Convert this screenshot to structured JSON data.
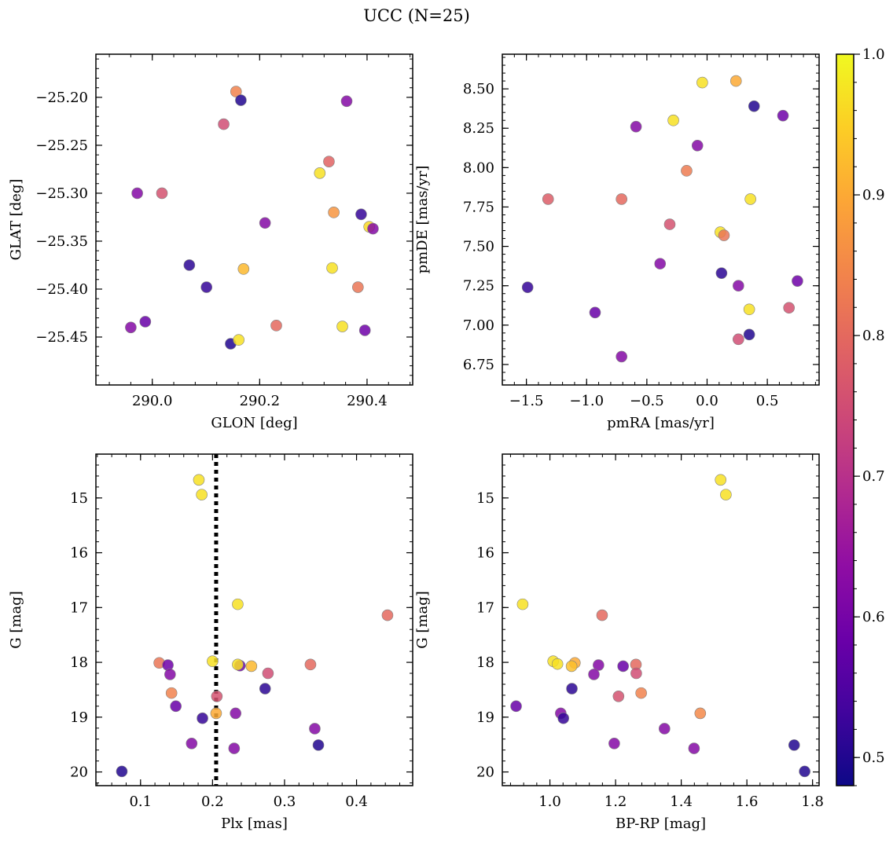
{
  "title": "UCC (N=25)",
  "colorbar": {
    "ticks": [
      0.5,
      0.6,
      0.7,
      0.8,
      0.9,
      1.0
    ],
    "tick_labels": [
      "0.5",
      "0.6",
      "0.7",
      "0.8",
      "0.9",
      "1.0"
    ],
    "range": [
      0.48,
      1.0
    ],
    "colormap": "plasma"
  },
  "chart_data": [
    {
      "type": "scatter",
      "xlabel": "GLON [deg]",
      "ylabel": "GLAT [deg]",
      "xlim": [
        289.895,
        290.485
      ],
      "ylim": [
        -25.5,
        -25.155
      ],
      "x_ticks": [
        290.0,
        290.2,
        290.4
      ],
      "x_tick_labels": [
        "290.0",
        "290.2",
        "290.4"
      ],
      "y_ticks": [
        -25.2,
        -25.25,
        -25.3,
        -25.35,
        -25.4,
        -25.45
      ],
      "y_tick_labels": [
        "−25.20",
        "−25.25",
        "−25.30",
        "−25.35",
        "−25.40",
        "−25.45"
      ],
      "points": [
        {
          "x": 290.156,
          "y": -25.194,
          "c": 0.84
        },
        {
          "x": 290.165,
          "y": -25.203,
          "c": 0.5
        },
        {
          "x": 290.362,
          "y": -25.204,
          "c": 0.62
        },
        {
          "x": 290.133,
          "y": -25.228,
          "c": 0.75
        },
        {
          "x": 290.329,
          "y": -25.267,
          "c": 0.79
        },
        {
          "x": 290.312,
          "y": -25.279,
          "c": 0.97
        },
        {
          "x": 289.972,
          "y": -25.3,
          "c": 0.62
        },
        {
          "x": 290.018,
          "y": -25.3,
          "c": 0.76
        },
        {
          "x": 290.338,
          "y": -25.32,
          "c": 0.87
        },
        {
          "x": 290.389,
          "y": -25.322,
          "c": 0.52
        },
        {
          "x": 290.21,
          "y": -25.331,
          "c": 0.62
        },
        {
          "x": 290.404,
          "y": -25.335,
          "c": 0.96
        },
        {
          "x": 290.411,
          "y": -25.337,
          "c": 0.62
        },
        {
          "x": 290.069,
          "y": -25.375,
          "c": 0.51
        },
        {
          "x": 290.17,
          "y": -25.379,
          "c": 0.92
        },
        {
          "x": 290.335,
          "y": -25.378,
          "c": 0.97
        },
        {
          "x": 290.101,
          "y": -25.398,
          "c": 0.52
        },
        {
          "x": 290.383,
          "y": -25.398,
          "c": 0.82
        },
        {
          "x": 289.96,
          "y": -25.44,
          "c": 0.62
        },
        {
          "x": 289.987,
          "y": -25.434,
          "c": 0.58
        },
        {
          "x": 290.231,
          "y": -25.438,
          "c": 0.8
        },
        {
          "x": 290.354,
          "y": -25.439,
          "c": 0.97
        },
        {
          "x": 290.396,
          "y": -25.443,
          "c": 0.59
        },
        {
          "x": 290.146,
          "y": -25.457,
          "c": 0.5
        },
        {
          "x": 290.161,
          "y": -25.453,
          "c": 0.97
        }
      ]
    },
    {
      "type": "scatter",
      "xlabel": "pmRA [mas/yr]",
      "ylabel": "pmDE [mas/yr]",
      "xlim": [
        -1.7,
        0.93
      ],
      "ylim": [
        6.62,
        8.72
      ],
      "x_ticks": [
        -1.5,
        -1.0,
        -0.5,
        0.0,
        0.5
      ],
      "x_tick_labels": [
        "−1.5",
        "−1.0",
        "−0.5",
        "0.0",
        "0.5"
      ],
      "y_ticks": [
        6.75,
        7.0,
        7.25,
        7.5,
        7.75,
        8.0,
        8.25,
        8.5
      ],
      "y_tick_labels": [
        "6.75",
        "7.00",
        "7.25",
        "7.50",
        "7.75",
        "8.00",
        "8.25",
        "8.50"
      ],
      "points": [
        {
          "x": 0.24,
          "y": 8.55,
          "c": 0.9
        },
        {
          "x": -0.04,
          "y": 8.54,
          "c": 0.97
        },
        {
          "x": 0.39,
          "y": 8.39,
          "c": 0.5
        },
        {
          "x": 0.63,
          "y": 8.33,
          "c": 0.59
        },
        {
          "x": -0.28,
          "y": 8.3,
          "c": 0.97
        },
        {
          "x": -0.59,
          "y": 8.26,
          "c": 0.62
        },
        {
          "x": -0.08,
          "y": 8.14,
          "c": 0.62
        },
        {
          "x": -0.17,
          "y": 7.98,
          "c": 0.83
        },
        {
          "x": -1.32,
          "y": 7.8,
          "c": 0.78
        },
        {
          "x": -0.71,
          "y": 7.8,
          "c": 0.8
        },
        {
          "x": 0.36,
          "y": 7.8,
          "c": 0.97
        },
        {
          "x": -0.31,
          "y": 7.64,
          "c": 0.76
        },
        {
          "x": 0.11,
          "y": 7.59,
          "c": 0.97
        },
        {
          "x": 0.14,
          "y": 7.57,
          "c": 0.82
        },
        {
          "x": -0.39,
          "y": 7.39,
          "c": 0.62
        },
        {
          "x": 0.12,
          "y": 7.33,
          "c": 0.51
        },
        {
          "x": -1.49,
          "y": 7.24,
          "c": 0.52
        },
        {
          "x": 0.26,
          "y": 7.25,
          "c": 0.62
        },
        {
          "x": 0.75,
          "y": 7.28,
          "c": 0.59
        },
        {
          "x": 0.68,
          "y": 7.11,
          "c": 0.76
        },
        {
          "x": 0.35,
          "y": 7.1,
          "c": 0.97
        },
        {
          "x": -0.93,
          "y": 7.08,
          "c": 0.58
        },
        {
          "x": 0.26,
          "y": 6.91,
          "c": 0.75
        },
        {
          "x": 0.35,
          "y": 6.94,
          "c": 0.5
        },
        {
          "x": -0.71,
          "y": 6.8,
          "c": 0.62
        }
      ]
    },
    {
      "type": "scatter",
      "xlabel": "Plx [mas]",
      "ylabel": "G [mag]",
      "xlim": [
        0.038,
        0.478
      ],
      "ylim": [
        20.25,
        14.2
      ],
      "y_inverted": true,
      "vline": {
        "x": 0.205,
        "style": "dotted"
      },
      "x_ticks": [
        0.1,
        0.2,
        0.3,
        0.4
      ],
      "x_tick_labels": [
        "0.1",
        "0.2",
        "0.3",
        "0.4"
      ],
      "y_ticks": [
        15,
        16,
        17,
        18,
        19,
        20
      ],
      "y_tick_labels": [
        "15",
        "16",
        "17",
        "18",
        "19",
        "20"
      ],
      "points": [
        {
          "x": 0.181,
          "y": 14.67,
          "c": 0.97
        },
        {
          "x": 0.185,
          "y": 14.94,
          "c": 0.97
        },
        {
          "x": 0.235,
          "y": 16.94,
          "c": 0.97
        },
        {
          "x": 0.443,
          "y": 17.14,
          "c": 0.8
        },
        {
          "x": 0.126,
          "y": 18.01,
          "c": 0.82
        },
        {
          "x": 0.138,
          "y": 18.05,
          "c": 0.59
        },
        {
          "x": 0.2,
          "y": 17.98,
          "c": 0.97
        },
        {
          "x": 0.238,
          "y": 18.06,
          "c": 0.59
        },
        {
          "x": 0.235,
          "y": 18.04,
          "c": 0.97
        },
        {
          "x": 0.254,
          "y": 18.07,
          "c": 0.92
        },
        {
          "x": 0.336,
          "y": 18.04,
          "c": 0.8
        },
        {
          "x": 0.141,
          "y": 18.22,
          "c": 0.62
        },
        {
          "x": 0.277,
          "y": 18.2,
          "c": 0.75
        },
        {
          "x": 0.143,
          "y": 18.56,
          "c": 0.84
        },
        {
          "x": 0.273,
          "y": 18.48,
          "c": 0.51
        },
        {
          "x": 0.206,
          "y": 18.62,
          "c": 0.76
        },
        {
          "x": 0.149,
          "y": 18.8,
          "c": 0.58
        },
        {
          "x": 0.186,
          "y": 19.02,
          "c": 0.52
        },
        {
          "x": 0.205,
          "y": 18.93,
          "c": 0.9
        },
        {
          "x": 0.232,
          "y": 18.93,
          "c": 0.62
        },
        {
          "x": 0.342,
          "y": 19.21,
          "c": 0.62
        },
        {
          "x": 0.171,
          "y": 19.48,
          "c": 0.62
        },
        {
          "x": 0.23,
          "y": 19.57,
          "c": 0.62
        },
        {
          "x": 0.347,
          "y": 19.51,
          "c": 0.5
        },
        {
          "x": 0.074,
          "y": 19.99,
          "c": 0.5
        }
      ]
    },
    {
      "type": "scatter",
      "xlabel": "BP-RP [mag]",
      "ylabel": "G [mag]",
      "xlim": [
        0.855,
        1.82
      ],
      "ylim": [
        20.25,
        14.2
      ],
      "y_inverted": true,
      "x_ticks": [
        1.0,
        1.2,
        1.4,
        1.6,
        1.8
      ],
      "x_tick_labels": [
        "1.0",
        "1.2",
        "1.4",
        "1.6",
        "1.8"
      ],
      "y_ticks": [
        15,
        16,
        17,
        18,
        19,
        20
      ],
      "y_tick_labels": [
        "15",
        "16",
        "17",
        "18",
        "19",
        "20"
      ],
      "points": [
        {
          "x": 1.52,
          "y": 14.67,
          "c": 0.97
        },
        {
          "x": 1.536,
          "y": 14.94,
          "c": 0.97
        },
        {
          "x": 0.917,
          "y": 16.94,
          "c": 0.97
        },
        {
          "x": 1.159,
          "y": 17.14,
          "c": 0.8
        },
        {
          "x": 1.01,
          "y": 17.98,
          "c": 0.97
        },
        {
          "x": 1.023,
          "y": 18.03,
          "c": 0.97
        },
        {
          "x": 1.076,
          "y": 18.01,
          "c": 0.9
        },
        {
          "x": 1.066,
          "y": 18.07,
          "c": 0.93
        },
        {
          "x": 1.148,
          "y": 18.05,
          "c": 0.62
        },
        {
          "x": 1.223,
          "y": 18.07,
          "c": 0.58
        },
        {
          "x": 1.262,
          "y": 18.04,
          "c": 0.8
        },
        {
          "x": 1.263,
          "y": 18.2,
          "c": 0.75
        },
        {
          "x": 1.134,
          "y": 18.22,
          "c": 0.62
        },
        {
          "x": 1.067,
          "y": 18.48,
          "c": 0.51
        },
        {
          "x": 1.278,
          "y": 18.56,
          "c": 0.84
        },
        {
          "x": 1.209,
          "y": 18.62,
          "c": 0.76
        },
        {
          "x": 0.897,
          "y": 18.8,
          "c": 0.58
        },
        {
          "x": 1.033,
          "y": 18.93,
          "c": 0.62
        },
        {
          "x": 1.041,
          "y": 19.02,
          "c": 0.52
        },
        {
          "x": 1.458,
          "y": 18.93,
          "c": 0.85
        },
        {
          "x": 1.349,
          "y": 19.21,
          "c": 0.62
        },
        {
          "x": 1.196,
          "y": 19.48,
          "c": 0.62
        },
        {
          "x": 1.439,
          "y": 19.57,
          "c": 0.62
        },
        {
          "x": 1.744,
          "y": 19.51,
          "c": 0.5
        },
        {
          "x": 1.776,
          "y": 19.99,
          "c": 0.5
        }
      ]
    }
  ]
}
